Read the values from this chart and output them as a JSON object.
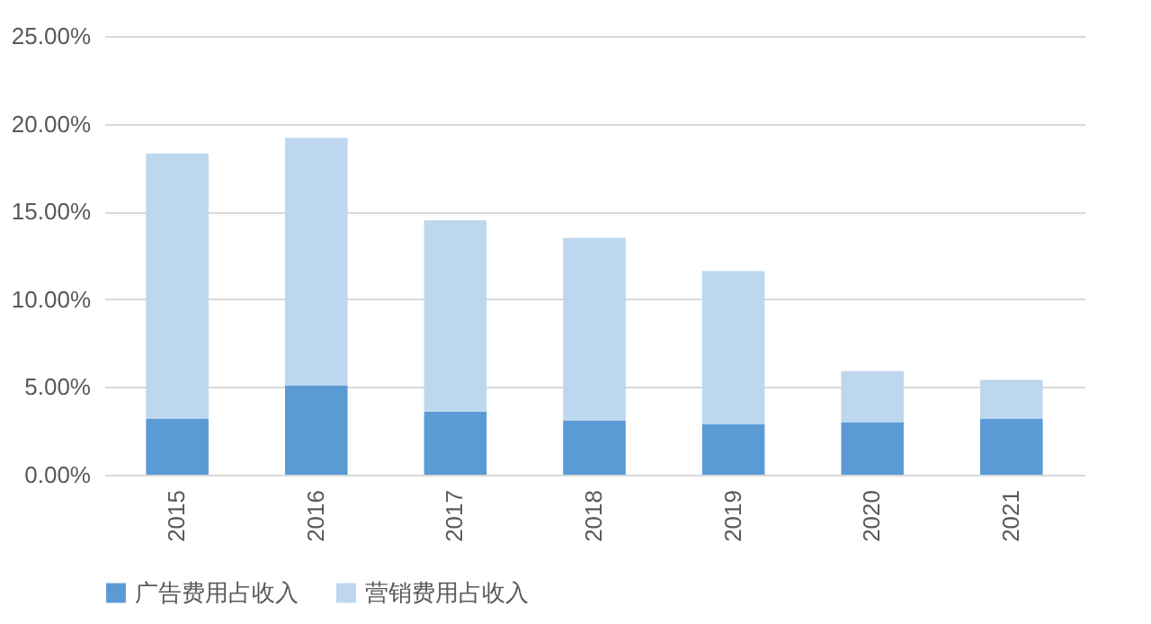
{
  "chart_data": {
    "type": "bar",
    "stacked": true,
    "categories": [
      "2015",
      "2016",
      "2017",
      "2018",
      "2019",
      "2020",
      "2021"
    ],
    "series": [
      {
        "name": "广告费用占收入",
        "color": "#5b9bd5",
        "values": [
          3.2,
          5.1,
          3.6,
          3.1,
          2.9,
          3.0,
          3.2
        ]
      },
      {
        "name": "营销费用占收入",
        "color": "#bdd7ee",
        "values": [
          15.1,
          14.1,
          10.9,
          10.4,
          8.7,
          2.9,
          2.2
        ]
      }
    ],
    "ylim": [
      0,
      25
    ],
    "yticks": [
      {
        "value": 0,
        "label": "0.00%"
      },
      {
        "value": 5,
        "label": "5.00%"
      },
      {
        "value": 10,
        "label": "10.00%"
      },
      {
        "value": 15,
        "label": "15.00%"
      },
      {
        "value": 20,
        "label": "20.00%"
      },
      {
        "value": 25,
        "label": "25.00%"
      }
    ],
    "grid": "y",
    "legend": "bottom"
  }
}
